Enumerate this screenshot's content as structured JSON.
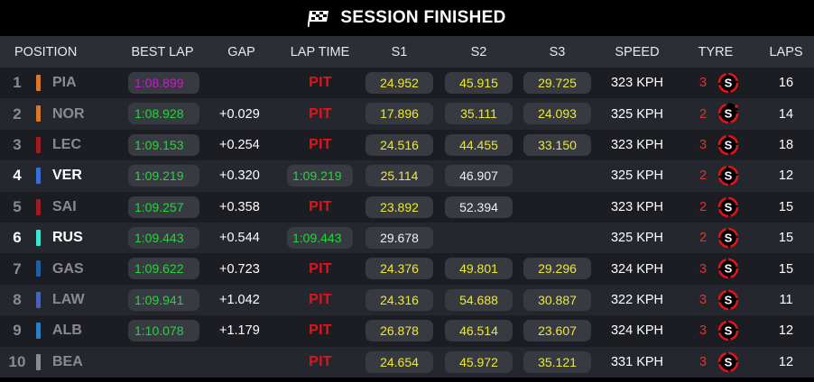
{
  "title": "SESSION FINISHED",
  "headers": {
    "position": "POSITION",
    "best_lap": "BEST LAP",
    "gap": "GAP",
    "lap_time": "LAP TIME",
    "s1": "S1",
    "s2": "S2",
    "s3": "S3",
    "speed": "SPEED",
    "tyre": "TYRE",
    "laps": "LAPS"
  },
  "rows": [
    {
      "pos": "1",
      "driver": "PIA",
      "team_color": "#d9782a",
      "highlight": false,
      "best_lap": "1:08.899",
      "best_color": "purple",
      "gap": "",
      "lap_time": "PIT",
      "lap_type": "pit",
      "s1": "24.952",
      "s1_color": "yellow",
      "s2": "45.915",
      "s2_color": "yellow",
      "s3": "29.725",
      "s3_color": "yellow",
      "speed": "323 KPH",
      "tyre_age": "3",
      "tyre": "soft",
      "tyre_state": "new",
      "laps": "16"
    },
    {
      "pos": "2",
      "driver": "NOR",
      "team_color": "#d9782a",
      "highlight": false,
      "best_lap": "1:08.928",
      "best_color": "green",
      "gap": "+0.029",
      "lap_time": "PIT",
      "lap_type": "pit",
      "s1": "17.896",
      "s1_color": "yellow",
      "s2": "35.111",
      "s2_color": "yellow",
      "s3": "24.093",
      "s3_color": "yellow",
      "speed": "325 KPH",
      "tyre_age": "2",
      "tyre": "soft",
      "tyre_state": "used",
      "laps": "14"
    },
    {
      "pos": "3",
      "driver": "LEC",
      "team_color": "#9e1b22",
      "highlight": false,
      "best_lap": "1:09.153",
      "best_color": "green",
      "gap": "+0.254",
      "lap_time": "PIT",
      "lap_type": "pit",
      "s1": "24.516",
      "s1_color": "yellow",
      "s2": "44.455",
      "s2_color": "yellow",
      "s3": "33.150",
      "s3_color": "yellow",
      "speed": "323 KPH",
      "tyre_age": "3",
      "tyre": "soft",
      "tyre_state": "new",
      "laps": "18"
    },
    {
      "pos": "4",
      "driver": "VER",
      "team_color": "#3b6fd8",
      "highlight": true,
      "best_lap": "1:09.219",
      "best_color": "green",
      "gap": "+0.320",
      "lap_time": "1:09.219",
      "lap_type": "time",
      "s1": "25.114",
      "s1_color": "yellow",
      "s2": "46.907",
      "s2_color": "white",
      "s3": "",
      "s3_color": "",
      "speed": "325 KPH",
      "tyre_age": "2",
      "tyre": "soft",
      "tyre_state": "new",
      "laps": "12"
    },
    {
      "pos": "5",
      "driver": "SAI",
      "team_color": "#9e1b22",
      "highlight": false,
      "best_lap": "1:09.257",
      "best_color": "green",
      "gap": "+0.358",
      "lap_time": "PIT",
      "lap_type": "pit",
      "s1": "23.892",
      "s1_color": "yellow",
      "s2": "52.394",
      "s2_color": "white",
      "s3": "",
      "s3_color": "",
      "speed": "323 KPH",
      "tyre_age": "2",
      "tyre": "soft",
      "tyre_state": "new",
      "laps": "15"
    },
    {
      "pos": "6",
      "driver": "RUS",
      "team_color": "#3ee6cf",
      "highlight": true,
      "best_lap": "1:09.443",
      "best_color": "green",
      "gap": "+0.544",
      "lap_time": "1:09.443",
      "lap_type": "time",
      "s1": "29.678",
      "s1_color": "white",
      "s2": "",
      "s2_color": "",
      "s3": "",
      "s3_color": "",
      "speed": "325 KPH",
      "tyre_age": "2",
      "tyre": "soft",
      "tyre_state": "new",
      "laps": "15"
    },
    {
      "pos": "7",
      "driver": "GAS",
      "team_color": "#1f5fa8",
      "highlight": false,
      "best_lap": "1:09.622",
      "best_color": "green",
      "gap": "+0.723",
      "lap_time": "PIT",
      "lap_type": "pit",
      "s1": "24.376",
      "s1_color": "yellow",
      "s2": "49.801",
      "s2_color": "yellow",
      "s3": "29.296",
      "s3_color": "yellow",
      "speed": "324 KPH",
      "tyre_age": "3",
      "tyre": "soft",
      "tyre_state": "new",
      "laps": "15"
    },
    {
      "pos": "8",
      "driver": "LAW",
      "team_color": "#4a63b8",
      "highlight": false,
      "best_lap": "1:09.941",
      "best_color": "green",
      "gap": "+1.042",
      "lap_time": "PIT",
      "lap_type": "pit",
      "s1": "24.316",
      "s1_color": "yellow",
      "s2": "54.688",
      "s2_color": "yellow",
      "s3": "30.887",
      "s3_color": "yellow",
      "speed": "322 KPH",
      "tyre_age": "3",
      "tyre": "soft",
      "tyre_state": "new",
      "laps": "11"
    },
    {
      "pos": "9",
      "driver": "ALB",
      "team_color": "#2a7fc1",
      "highlight": false,
      "best_lap": "1:10.078",
      "best_color": "green",
      "gap": "+1.179",
      "lap_time": "PIT",
      "lap_type": "pit",
      "s1": "26.878",
      "s1_color": "yellow",
      "s2": "46.514",
      "s2_color": "yellow",
      "s3": "23.607",
      "s3_color": "yellow",
      "speed": "324 KPH",
      "tyre_age": "3",
      "tyre": "soft",
      "tyre_state": "new",
      "laps": "12"
    },
    {
      "pos": "10",
      "driver": "BEA",
      "team_color": "#8a8b90",
      "highlight": false,
      "best_lap": "",
      "best_color": "",
      "gap": "",
      "lap_time": "PIT",
      "lap_type": "pit",
      "s1": "24.654",
      "s1_color": "yellow",
      "s2": "45.972",
      "s2_color": "yellow",
      "s3": "35.121",
      "s3_color": "yellow",
      "speed": "331 KPH",
      "tyre_age": "3",
      "tyre": "soft",
      "tyre_state": "new",
      "laps": "12"
    }
  ],
  "colors": {
    "purple": "#c61cc6",
    "green": "#25d53b",
    "yellow": "#ece838",
    "white": "#f0f0f0",
    "pit": "#e1141c",
    "tyre_soft": "#e1141c"
  }
}
